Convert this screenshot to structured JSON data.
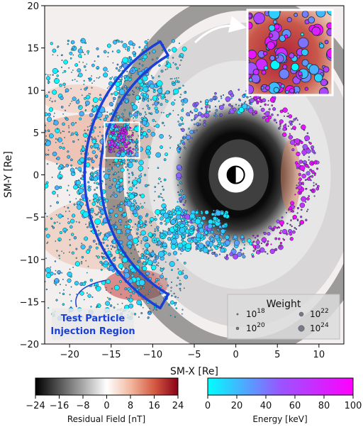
{
  "chart_data": {
    "type": "scatter",
    "xlabel": "SM-X [Re]",
    "ylabel": "SM-Y [Re]",
    "xlim": [
      -23,
      13
    ],
    "ylim": [
      -20,
      20
    ],
    "xticks": [
      -20,
      -15,
      -10,
      -5,
      0,
      5,
      10
    ],
    "yticks": [
      -20,
      -15,
      -10,
      -5,
      0,
      5,
      10,
      15,
      20
    ],
    "background_field": {
      "name": "Residual Field",
      "earth_center": [
        0,
        0
      ],
      "description_colors": "black-gray-white for negative, red for positive"
    },
    "injection_region": {
      "label_line1": "Test Particle",
      "label_line2": "Injection Region",
      "color": "#1a3fd6",
      "inner_radius": 16.3,
      "outer_radius": 18.2,
      "angle_range_deg": [
        120,
        240
      ]
    },
    "zoom_box": {
      "source_x": [
        -15.8,
        -11.6
      ],
      "source_y": [
        2,
        6.2
      ]
    },
    "legend": {
      "title": "Weight",
      "entries": [
        {
          "label_base": "10",
          "label_exp": "18",
          "size": 1.2
        },
        {
          "label_base": "10",
          "label_exp": "22",
          "size": 3.0
        },
        {
          "label_base": "10",
          "label_exp": "20",
          "size": 2.0
        },
        {
          "label_base": "10",
          "label_exp": "24",
          "size": 4.2
        }
      ]
    },
    "colorbars": [
      {
        "name": "residual-field",
        "label": "Residual Field [nT]",
        "ticks": [
          "−24",
          "−16",
          "−8",
          "0",
          "8",
          "16",
          "24"
        ],
        "colors": [
          "#000000",
          "#555555",
          "#a8a8a8",
          "#ffffff",
          "#f2b9a0",
          "#d45a42",
          "#8a0018"
        ]
      },
      {
        "name": "energy",
        "label": "Energy [keV]",
        "ticks": [
          "0",
          "20",
          "40",
          "60",
          "80",
          "100"
        ],
        "colors": [
          "#00ffff",
          "#9955ff",
          "#ff00ff"
        ]
      }
    ]
  }
}
